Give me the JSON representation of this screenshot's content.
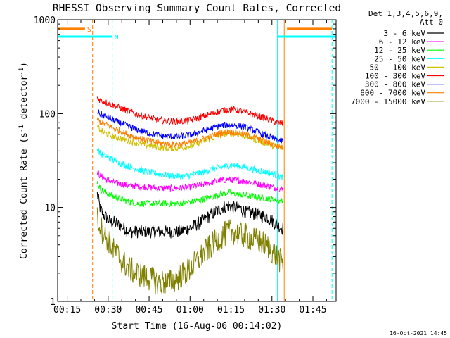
{
  "chart_data": {
    "type": "line",
    "title": "RHESSI Observing Summary Count Rates, Corrected",
    "xlabel": "Start Time (16-Aug-06 00:14:02)",
    "ylabel": "Corrected Count Rate (s⁻¹ detector⁻¹)",
    "ylabel_parts": {
      "main": "Corrected Count Rate (s",
      "sup1": "-1",
      "mid": " detector",
      "sup2": "-1",
      "end": ")"
    },
    "yscale": "log",
    "xlim": [
      11.5,
      113.5
    ],
    "ylim": [
      1,
      1000
    ],
    "x_ticks": [
      {
        "value": 15,
        "label": "00:15"
      },
      {
        "value": 30,
        "label": "00:30"
      },
      {
        "value": 45,
        "label": "00:45"
      },
      {
        "value": 60,
        "label": "01:00"
      },
      {
        "value": 75,
        "label": "01:15"
      },
      {
        "value": 90,
        "label": "01:30"
      },
      {
        "value": 105,
        "label": "01:45"
      }
    ],
    "y_ticks": [
      {
        "value": 1,
        "label": "1"
      },
      {
        "value": 10,
        "label": "10"
      },
      {
        "value": 100,
        "label": "100"
      },
      {
        "value": 1000,
        "label": "1000"
      }
    ],
    "legend_header": [
      "Det 1,3,4,5,6,9,",
      "Att 0"
    ],
    "legend_placement": "right",
    "series": [
      {
        "name": "3 - 6 keV",
        "color": "#000000",
        "x": [
          26,
          27,
          28,
          29,
          30,
          31,
          32,
          34,
          36,
          38,
          40,
          44,
          48,
          52,
          56,
          60,
          64,
          68,
          72,
          74,
          76,
          78,
          80,
          84,
          88,
          92,
          94
        ],
        "y": [
          14,
          10,
          8.5,
          8,
          7.5,
          7,
          7,
          6.5,
          6,
          5.5,
          5.5,
          5.5,
          5.5,
          5.5,
          5.5,
          6,
          7,
          8.5,
          10,
          10.5,
          10,
          10,
          9,
          8.5,
          8,
          6.5,
          6
        ]
      },
      {
        "name": "6 - 12 keV",
        "color": "#ff00ff",
        "x": [
          26,
          27,
          28,
          29,
          30,
          31,
          32,
          34,
          36,
          38,
          40,
          44,
          48,
          52,
          56,
          60,
          64,
          68,
          72,
          74,
          76,
          78,
          80,
          84,
          88,
          92,
          94
        ],
        "y": [
          24,
          22,
          21,
          20,
          19.5,
          19,
          18.5,
          18,
          17.5,
          17,
          17,
          16.5,
          16,
          16,
          16,
          16.5,
          17.5,
          18.5,
          19.5,
          20,
          19.5,
          19.5,
          19,
          18,
          17,
          16,
          15.5
        ]
      },
      {
        "name": "12 - 25 keV",
        "color": "#00ff00",
        "x": [
          26,
          27,
          28,
          29,
          30,
          31,
          32,
          34,
          36,
          38,
          40,
          44,
          48,
          52,
          56,
          60,
          64,
          68,
          72,
          74,
          76,
          78,
          80,
          84,
          88,
          92,
          94
        ],
        "y": [
          19,
          16,
          15,
          14.5,
          14,
          13.5,
          13,
          12.5,
          12,
          11.5,
          11,
          11,
          11,
          11,
          11,
          11.5,
          12,
          13,
          14,
          14.5,
          14,
          13.8,
          13.5,
          13,
          12.5,
          12,
          11.5
        ]
      },
      {
        "name": "25 - 50 keV",
        "color": "#00ffff",
        "x": [
          26,
          27,
          28,
          29,
          30,
          31,
          32,
          34,
          36,
          38,
          40,
          44,
          48,
          52,
          56,
          60,
          64,
          68,
          72,
          74,
          76,
          78,
          80,
          84,
          88,
          92,
          94
        ],
        "y": [
          43,
          38,
          36,
          35,
          34,
          33,
          32,
          30,
          28.5,
          27,
          26,
          24,
          23,
          22,
          21.5,
          22,
          23.5,
          25.5,
          27,
          28,
          28,
          27.5,
          27,
          25,
          24,
          22,
          21
        ]
      },
      {
        "name": "50 - 100 keV",
        "color": "#d0c000",
        "x": [
          26,
          27,
          28,
          29,
          30,
          31,
          32,
          34,
          36,
          38,
          40,
          44,
          48,
          52,
          56,
          60,
          64,
          68,
          72,
          74,
          76,
          78,
          80,
          84,
          88,
          92,
          94
        ],
        "y": [
          72,
          68,
          64,
          62,
          60,
          58,
          57,
          55,
          53,
          51,
          49,
          46,
          44,
          43,
          43,
          45,
          50,
          55,
          60,
          62,
          61,
          60,
          58,
          53,
          48,
          44,
          43
        ]
      },
      {
        "name": "100 - 300 keV",
        "color": "#ff0000",
        "x": [
          26,
          27,
          28,
          29,
          30,
          31,
          32,
          34,
          36,
          38,
          40,
          44,
          48,
          52,
          56,
          60,
          64,
          68,
          72,
          74,
          76,
          78,
          80,
          84,
          88,
          92,
          94
        ],
        "y": [
          148,
          140,
          135,
          132,
          130,
          126,
          122,
          116,
          110,
          105,
          100,
          92,
          86,
          83,
          82,
          85,
          92,
          100,
          108,
          110,
          110,
          108,
          104,
          96,
          88,
          80,
          78
        ]
      },
      {
        "name": "300 - 800 keV",
        "color": "#0000ff",
        "x": [
          26,
          27,
          28,
          29,
          30,
          31,
          32,
          34,
          36,
          38,
          40,
          44,
          48,
          52,
          56,
          60,
          64,
          68,
          72,
          74,
          76,
          78,
          80,
          84,
          88,
          92,
          94
        ],
        "y": [
          105,
          100,
          96,
          94,
          92,
          88,
          85,
          80,
          76,
          72,
          68,
          63,
          59,
          57,
          57,
          59,
          64,
          70,
          75,
          76,
          75,
          74,
          72,
          65,
          58,
          52,
          51
        ]
      },
      {
        "name": "800 - 7000 keV",
        "color": "#ff8000",
        "x": [
          26,
          27,
          28,
          29,
          30,
          31,
          32,
          34,
          36,
          38,
          40,
          44,
          48,
          52,
          56,
          60,
          64,
          68,
          72,
          74,
          76,
          78,
          80,
          84,
          88,
          92,
          94
        ],
        "y": [
          87,
          82,
          79,
          77,
          75,
          72,
          70,
          66,
          62,
          59,
          56,
          52,
          49,
          47,
          47,
          49,
          53,
          58,
          63,
          64,
          63,
          62,
          60,
          55,
          50,
          45,
          44
        ]
      },
      {
        "name": "7000 - 15000 keV",
        "color": "#808000",
        "x": [
          26,
          27,
          28,
          29,
          30,
          31,
          32,
          34,
          36,
          38,
          40,
          44,
          48,
          52,
          56,
          60,
          64,
          68,
          72,
          74,
          76,
          78,
          80,
          84,
          88,
          92,
          94
        ],
        "y": [
          7.5,
          6.5,
          5.5,
          5,
          4.5,
          4,
          3.5,
          3,
          2.5,
          2.2,
          2,
          1.8,
          1.6,
          1.6,
          1.8,
          2.2,
          3,
          4,
          5,
          5.5,
          5.5,
          5.2,
          5,
          4.5,
          4,
          3,
          2.5
        ]
      }
    ],
    "vlines": [
      {
        "x": 24.3,
        "style": "dashed",
        "color": "#ff8000"
      },
      {
        "x": 31.5,
        "style": "dashed",
        "color": "#00ffff"
      },
      {
        "x": 92.0,
        "style": "solid",
        "color": "#00ffff"
      },
      {
        "x": 94.5,
        "style": "solid",
        "color": "#ff8000"
      },
      {
        "x": 112.0,
        "style": "dashed",
        "color": "#00ffff"
      }
    ],
    "flag_bars": [
      {
        "label": "S",
        "color": "#ff8000",
        "y": 800,
        "segments": [
          [
            11.5,
            21.5
          ],
          [
            95.5,
            112.0
          ]
        ]
      },
      {
        "label": "N",
        "color": "#00ffff",
        "y": 660,
        "segments": [
          [
            11.5,
            31.5
          ],
          [
            92.0,
            113.5
          ]
        ]
      }
    ],
    "footer_date": "16-Oct-2021 14:45"
  }
}
